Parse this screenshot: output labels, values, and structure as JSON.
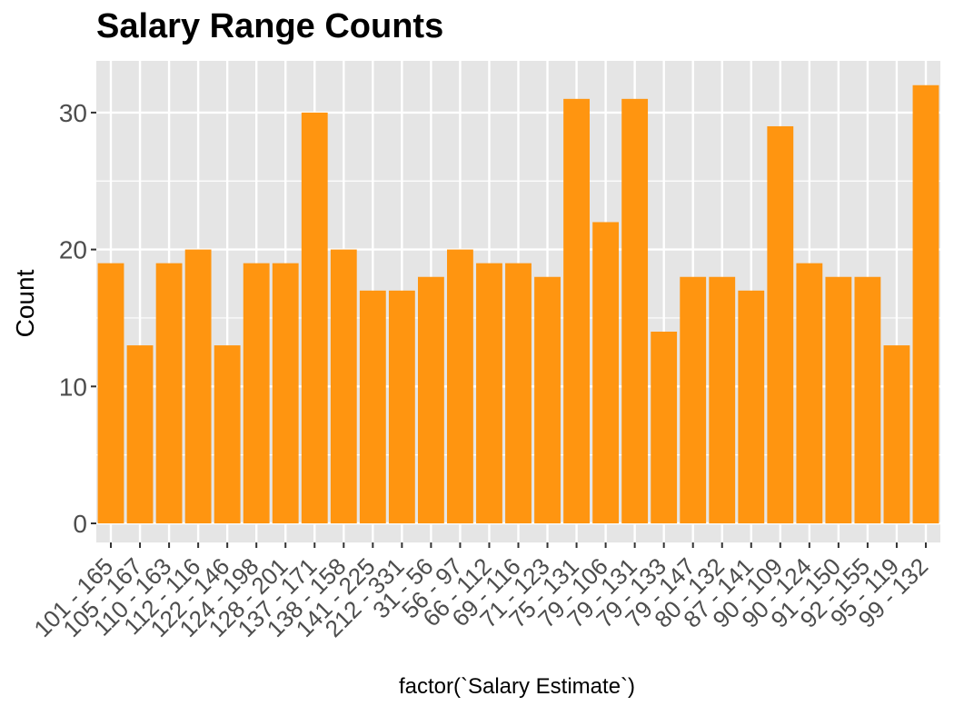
{
  "chart_data": {
    "type": "bar",
    "title": "Salary Range Counts",
    "xlabel": "factor(`Salary Estimate`)",
    "ylabel": "Count",
    "ylim": [
      0,
      33.6
    ],
    "yticks": [
      0,
      10,
      20,
      30
    ],
    "grid": true,
    "bar_color": "#FF9510",
    "panel_color": "#E5E5E5",
    "categories": [
      "101 - 165",
      "105 - 167",
      "110 - 163",
      "112 - 116",
      "122 - 146",
      "124 - 198",
      "128 - 201",
      "137 - 171",
      "138 - 158",
      "141 - 225",
      "212 - 331",
      "31 - 56",
      "56 - 97",
      "66 - 112",
      "69 - 116",
      "71 - 123",
      "75 - 131",
      "79 - 106",
      "79 - 131",
      "79 - 133",
      "79 - 147",
      "80 - 132",
      "87 - 141",
      "90 - 109",
      "90 - 124",
      "91 - 150",
      "92 - 155",
      "95 - 119",
      "99 - 132"
    ],
    "values": [
      19,
      13,
      19,
      20,
      13,
      19,
      19,
      30,
      20,
      17,
      17,
      18,
      20,
      19,
      19,
      18,
      31,
      22,
      31,
      14,
      18,
      18,
      17,
      29,
      19,
      18,
      18,
      13,
      32
    ]
  }
}
